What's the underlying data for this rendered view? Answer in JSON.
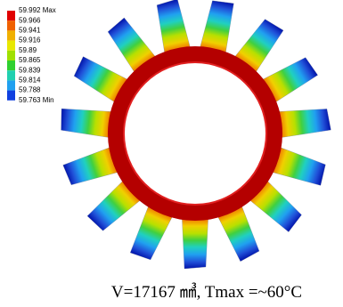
{
  "legend": {
    "labels": [
      "59.992 Max",
      "59.966",
      "59.941",
      "59.916",
      "59.89",
      "59.865",
      "59.839",
      "59.814",
      "59.788",
      "59.763 Min"
    ]
  },
  "caption": "V=17167 ㎣, Tmax =~60°C"
}
